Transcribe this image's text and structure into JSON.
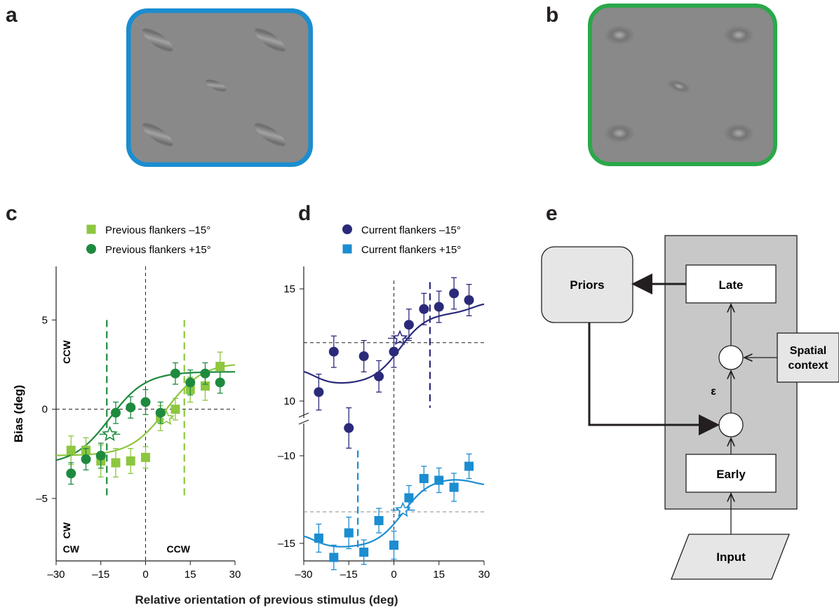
{
  "panels": {
    "a": "a",
    "b": "b",
    "c": "c",
    "d": "d",
    "e": "e"
  },
  "colors": {
    "light_green": "#8dc63f",
    "dark_green": "#1e8a3e",
    "navy": "#2b2a7a",
    "blue": "#1b8dd0",
    "frame_a": "#1b8dd0",
    "frame_b": "#2aa84a",
    "diagram_gray": "#c8c8c8",
    "priors_gray": "#e6e6e6"
  },
  "shared_xlabel": "Relative orientation of previous stimulus (deg)",
  "chart_data": [
    {
      "panel": "c",
      "type": "scatter",
      "xlabel": "Relative orientation of previous stimulus (deg)",
      "ylabel": "Bias (deg)",
      "xlim": [
        -30,
        30
      ],
      "ylim": [
        -8.5,
        8
      ],
      "xticks": [
        -30,
        -15,
        0,
        15,
        30
      ],
      "xtick_labels": [
        "–30",
        "–15",
        "0",
        "15",
        "30"
      ],
      "yticks": [
        -5,
        0,
        5
      ],
      "ytick_labels": [
        "–5",
        "0",
        "5"
      ],
      "annotations": {
        "ccw_top": "CCW",
        "cw_bottom": "CW",
        "cw_left": "CW",
        "ccw_right": "CCW"
      },
      "legend_position": "top",
      "series": [
        {
          "name": "Previous flankers –15°",
          "marker": "square",
          "color": "#8dc63f",
          "x": [
            -25,
            -20,
            -15,
            -10,
            -5,
            0,
            5,
            10,
            15,
            20,
            25
          ],
          "y": [
            -2.3,
            -2.3,
            -2.9,
            -3.0,
            -2.9,
            -2.7,
            -0.5,
            0.0,
            1.1,
            1.3,
            2.4
          ],
          "err": [
            0.8,
            0.7,
            0.9,
            0.8,
            0.7,
            0.6,
            0.7,
            0.6,
            0.7,
            0.8,
            0.8
          ],
          "fit": {
            "offset": 0.0,
            "amp": 2.6,
            "width": 12,
            "vline": 13,
            "star": [
              7,
              -0.5
            ],
            "star_xerr": 2.5
          }
        },
        {
          "name": "Previous flankers +15°",
          "marker": "circle",
          "color": "#1e8a3e",
          "x": [
            -25,
            -20,
            -15,
            -10,
            -5,
            0,
            10,
            15,
            25
          ],
          "y": [
            -3.6,
            -2.8,
            -2.6,
            -0.2,
            0.1,
            0.4,
            2.0,
            1.5,
            1.5
          ],
          "err": [
            0.6,
            0.6,
            0.7,
            0.6,
            0.6,
            0.7,
            0.6,
            0.7,
            0.6
          ],
          "extra_x": [
            5,
            20
          ],
          "extra_y": [
            -0.2,
            2.0
          ],
          "extra_err": [
            0.6,
            0.6
          ],
          "fit": {
            "offset": -0.5,
            "amp": 2.6,
            "width": 12,
            "vline": -13,
            "star": [
              -12,
              -1.4
            ],
            "star_xerr": 3.5
          }
        }
      ],
      "hline": 0,
      "vline": 0
    },
    {
      "panel": "d",
      "type": "scatter",
      "xlim": [
        -30,
        30
      ],
      "xticks": [
        -30,
        -15,
        0,
        15,
        30
      ],
      "xtick_labels": [
        "–30",
        "–15",
        "0",
        "15",
        "30"
      ],
      "upper_ylim": [
        8.5,
        16
      ],
      "lower_ylim": [
        -16,
        -9
      ],
      "yticks_upper": [
        10,
        15
      ],
      "ytick_labels_upper": [
        "10",
        "15"
      ],
      "yticks_lower": [
        -10,
        -15
      ],
      "ytick_labels_lower": [
        "–10",
        "–15"
      ],
      "legend_position": "top",
      "series": [
        {
          "name": "Current flankers –15°",
          "marker": "circle",
          "color": "#2b2a7a",
          "x": [
            -25,
            -20,
            -15,
            -10,
            -5,
            0,
            5,
            10,
            15,
            20,
            25
          ],
          "y": [
            10.4,
            12.2,
            8.8,
            12.0,
            11.1,
            12.2,
            13.4,
            14.1,
            14.2,
            14.8,
            14.5
          ],
          "err": [
            0.8,
            0.7,
            0.9,
            0.7,
            0.7,
            0.7,
            0.7,
            0.7,
            0.7,
            0.7,
            0.7
          ],
          "hline": 12.6,
          "vline": 12,
          "star": [
            2,
            12.8
          ],
          "star_xerr": 4
        },
        {
          "name": "Current flankers +15°",
          "marker": "square",
          "color": "#1b8dd0",
          "x": [
            -25,
            -20,
            -15,
            -10,
            -5,
            0,
            5,
            10,
            15,
            20,
            25
          ],
          "y": [
            -14.7,
            -15.8,
            -14.4,
            -15.5,
            -13.7,
            -15.1,
            -12.4,
            -11.3,
            -11.4,
            -11.8,
            -10.6
          ],
          "err": [
            0.8,
            0.7,
            0.9,
            0.7,
            0.7,
            0.8,
            0.7,
            0.7,
            0.7,
            0.8,
            0.7
          ],
          "hline": -13.2,
          "vline": -12,
          "star": [
            3,
            -13.1
          ],
          "star_xerr": 4
        }
      ]
    }
  ],
  "diagram": {
    "priors": "Priors",
    "late": "Late",
    "early": "Early",
    "input": "Input",
    "spatial_context_line1": "Spatial",
    "spatial_context_line2": "context",
    "epsilon": "ε"
  }
}
